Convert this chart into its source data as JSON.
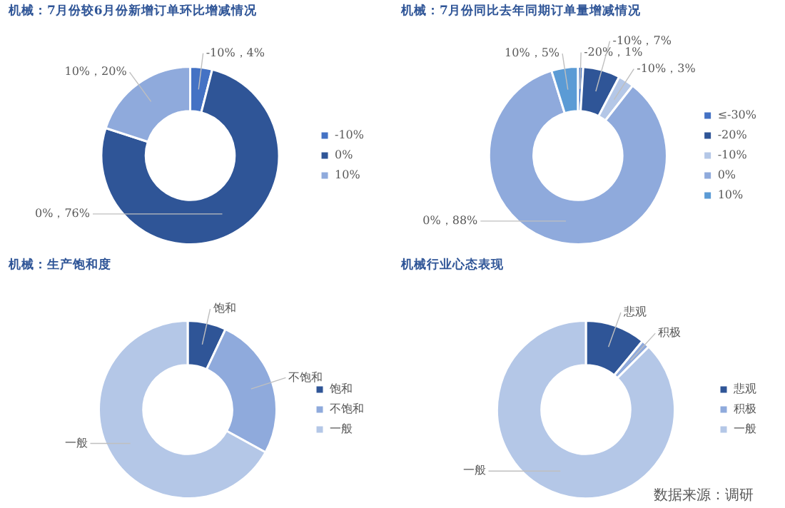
{
  "chart_data": [
    {
      "type": "donut",
      "title": "机械：7月份较6月份新增订单环比增减情况",
      "categories": [
        "-10%",
        "0%",
        "10%"
      ],
      "values": [
        4,
        76,
        20
      ],
      "colors": [
        "#4472c4",
        "#2f5597",
        "#8faadc"
      ],
      "value_labels": [
        "-10%，4%",
        "0%，76%",
        "10%，20%"
      ],
      "legend": "right"
    },
    {
      "type": "donut",
      "title": "机械：7月份同比去年同期订单量增减情况",
      "categories": [
        "≤-30%",
        "-20%",
        "-10%",
        "0%",
        "10%"
      ],
      "values": [
        1,
        7,
        3,
        88,
        5
      ],
      "colors": [
        "#4472c4",
        "#2f5597",
        "#b4c7e7",
        "#8faadc",
        "#5b9bd5"
      ],
      "value_labels": [
        "-20%，1%",
        "-10%，7%",
        "-10%，3%",
        "0%，88%",
        "10%，5%"
      ],
      "legend": "right"
    },
    {
      "type": "donut",
      "title": "机械：生产饱和度",
      "categories": [
        "饱和",
        "不饱和",
        "一般"
      ],
      "values": [
        7,
        26,
        67
      ],
      "colors": [
        "#2f5597",
        "#8faadc",
        "#b4c7e7"
      ],
      "value_labels": [
        "饱和",
        "不饱和",
        "一般"
      ],
      "legend": "right"
    },
    {
      "type": "donut",
      "title": "机械行业心态表现",
      "categories": [
        "悲观",
        "积极",
        "一般"
      ],
      "values": [
        11,
        1.5,
        87.5
      ],
      "colors": [
        "#2f5597",
        "#8faadc",
        "#b4c7e7"
      ],
      "value_labels": [
        "悲观",
        "积极",
        "一般"
      ],
      "legend": "right",
      "annotations": [
        "数据来源：调研"
      ]
    }
  ]
}
